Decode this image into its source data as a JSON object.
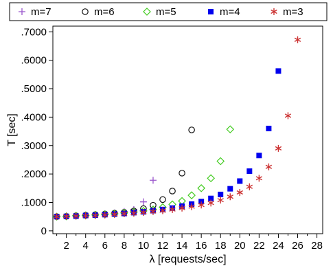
{
  "chart_data": {
    "type": "scatter",
    "xlabel": "λ  [requests/sec]",
    "ylabel": "T [sec]",
    "xlim": [
      0.6,
      28.6
    ],
    "ylim": [
      -0.01,
      0.72
    ],
    "x_ticks": [
      2,
      4,
      6,
      8,
      10,
      12,
      14,
      16,
      18,
      20,
      22,
      24,
      26,
      28
    ],
    "x_tick_labels": [
      "2",
      "4",
      "6",
      "8",
      "10",
      "12",
      "14",
      "16",
      "18",
      "20",
      "22",
      "24",
      "26",
      "28"
    ],
    "y_ticks": [
      0,
      0.1,
      0.2,
      0.3,
      0.4,
      0.5,
      0.6,
      0.7
    ],
    "y_tick_labels": [
      "0",
      ".1000",
      ".2000",
      ".3000",
      ".4000",
      ".5000",
      ".6000",
      ".7000"
    ],
    "grid": false,
    "legend_position": "top",
    "series": [
      {
        "name": "m=7",
        "marker": "plus",
        "color": "#9955cc",
        "x": [
          1,
          2,
          3,
          4,
          5,
          6,
          7,
          8,
          9,
          10,
          11
        ],
        "y": [
          0.05,
          0.052,
          0.054,
          0.056,
          0.058,
          0.06,
          0.063,
          0.068,
          0.075,
          0.102,
          0.178
        ]
      },
      {
        "name": "m=6",
        "marker": "circle",
        "color": "#111111",
        "x": [
          1,
          2,
          3,
          4,
          5,
          6,
          7,
          8,
          9,
          10,
          11,
          12,
          13,
          14,
          15
        ],
        "y": [
          0.05,
          0.051,
          0.053,
          0.055,
          0.057,
          0.059,
          0.062,
          0.065,
          0.07,
          0.078,
          0.09,
          0.11,
          0.14,
          0.203,
          0.355
        ]
      },
      {
        "name": "m=5",
        "marker": "diamond",
        "color": "#44cc22",
        "x": [
          1,
          2,
          3,
          4,
          5,
          6,
          7,
          8,
          9,
          10,
          11,
          12,
          13,
          14,
          15,
          16,
          17,
          18,
          19
        ],
        "y": [
          0.05,
          0.051,
          0.053,
          0.054,
          0.056,
          0.058,
          0.06,
          0.063,
          0.066,
          0.07,
          0.075,
          0.083,
          0.093,
          0.105,
          0.125,
          0.15,
          0.185,
          0.245,
          0.357
        ]
      },
      {
        "name": "m=4",
        "marker": "square",
        "color": "#0000ee",
        "x": [
          1,
          2,
          3,
          4,
          5,
          6,
          7,
          8,
          9,
          10,
          11,
          12,
          13,
          14,
          15,
          16,
          17,
          18,
          19,
          20,
          21,
          22,
          23,
          24
        ],
        "y": [
          0.05,
          0.051,
          0.052,
          0.054,
          0.055,
          0.057,
          0.059,
          0.061,
          0.064,
          0.067,
          0.071,
          0.075,
          0.08,
          0.087,
          0.094,
          0.103,
          0.114,
          0.128,
          0.148,
          0.175,
          0.21,
          0.265,
          0.36,
          0.562
        ]
      },
      {
        "name": "m=3",
        "marker": "star",
        "color": "#cc3333",
        "x": [
          1,
          2,
          3,
          4,
          5,
          6,
          7,
          8,
          9,
          10,
          11,
          12,
          13,
          14,
          15,
          16,
          17,
          18,
          19,
          20,
          21,
          22,
          23,
          24,
          25,
          26
        ],
        "y": [
          0.05,
          0.051,
          0.052,
          0.053,
          0.054,
          0.056,
          0.058,
          0.06,
          0.062,
          0.065,
          0.068,
          0.071,
          0.075,
          0.08,
          0.085,
          0.091,
          0.098,
          0.108,
          0.12,
          0.135,
          0.155,
          0.185,
          0.225,
          0.29,
          0.405,
          0.672
        ]
      }
    ]
  }
}
